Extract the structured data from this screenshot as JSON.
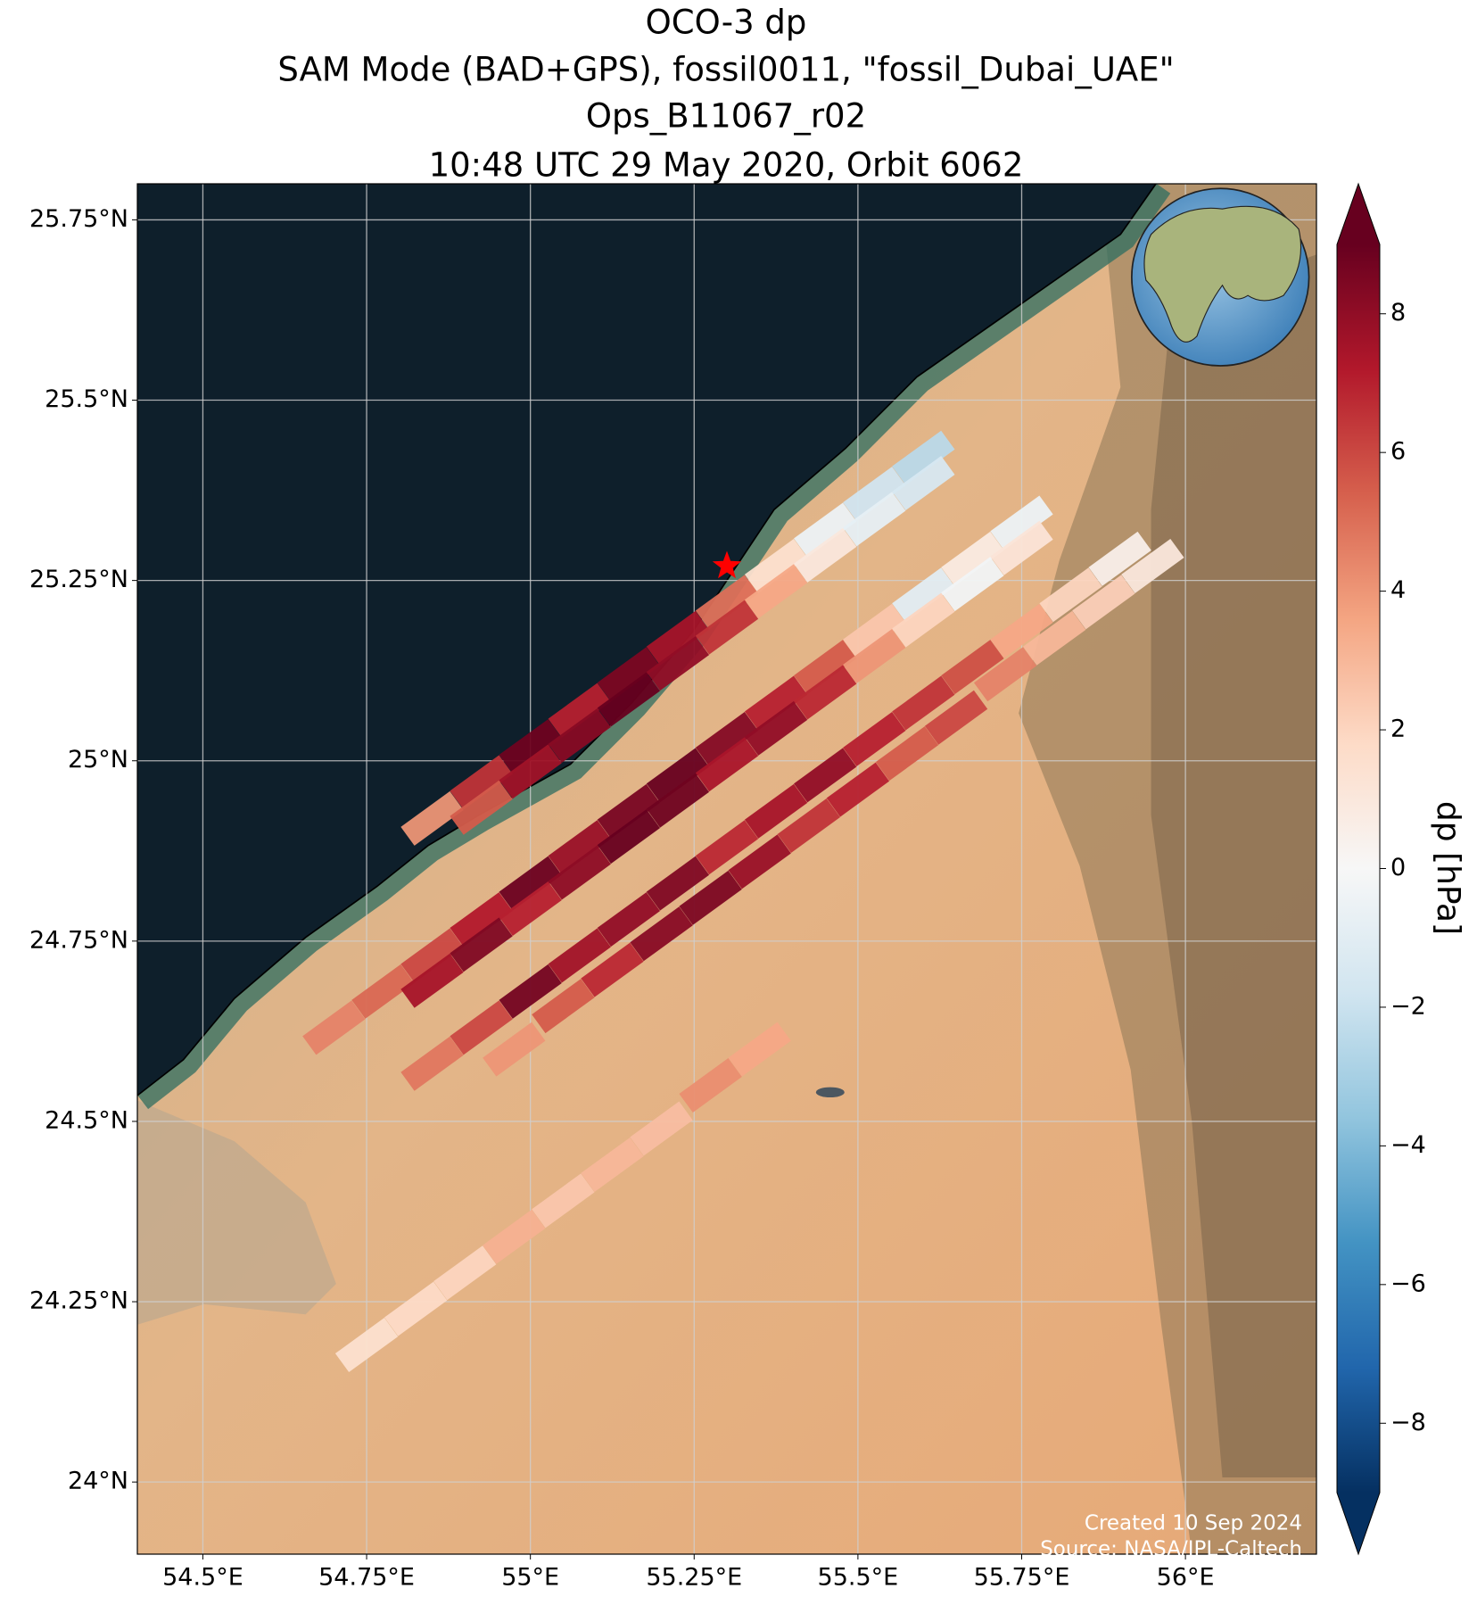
{
  "chart_data": {
    "type": "map",
    "title": [
      "OCO-3 dp",
      "SAM Mode (BAD+GPS), fossil0011, \"fossil_Dubai_UAE\"",
      "Ops_B11067_r02",
      "10:48 UTC 29 May 2020, Orbit 6062"
    ],
    "xlim": [
      54.4,
      56.2
    ],
    "ylim": [
      23.9,
      25.8
    ],
    "xticks": [
      {
        "value": 54.5,
        "label": "54.5°E"
      },
      {
        "value": 54.75,
        "label": "54.75°E"
      },
      {
        "value": 55,
        "label": "55°E"
      },
      {
        "value": 55.25,
        "label": "55.25°E"
      },
      {
        "value": 55.5,
        "label": "55.5°E"
      },
      {
        "value": 55.75,
        "label": "55.75°E"
      },
      {
        "value": 56,
        "label": "56°E"
      }
    ],
    "yticks": [
      {
        "value": 24,
        "label": "24°N"
      },
      {
        "value": 24.25,
        "label": "24.25°N"
      },
      {
        "value": 24.5,
        "label": "24.5°N"
      },
      {
        "value": 24.75,
        "label": "24.75°N"
      },
      {
        "value": 25,
        "label": "25°N"
      },
      {
        "value": 25.25,
        "label": "25.25°N"
      },
      {
        "value": 25.5,
        "label": "25.5°N"
      },
      {
        "value": 25.75,
        "label": "25.75°N"
      }
    ],
    "grid": true,
    "x": [
      55.6,
      55.525,
      55.45,
      55.375,
      55.3,
      55.225,
      55.15,
      55.075,
      55.0,
      54.925,
      54.85,
      55.6,
      55.525,
      55.45,
      55.375,
      55.3,
      55.225,
      55.15,
      55.075,
      55.0,
      54.925,
      55.75,
      55.675,
      55.6,
      55.525,
      55.45,
      55.375,
      55.3,
      55.225,
      55.15,
      55.075,
      55.0,
      54.925,
      54.85,
      54.775,
      54.7,
      55.75,
      55.675,
      55.6,
      55.525,
      55.45,
      55.375,
      55.3,
      55.225,
      55.15,
      55.075,
      55.0,
      54.925,
      54.85,
      55.9,
      55.825,
      55.75,
      55.675,
      55.6,
      55.525,
      55.45,
      55.375,
      55.3,
      55.225,
      55.15,
      55.075,
      55.0,
      54.925,
      54.85,
      55.95,
      55.875,
      55.8,
      55.725,
      55.65,
      55.575,
      55.5,
      55.425,
      55.35,
      55.275,
      55.2,
      55.125,
      55.05,
      54.975,
      55.35,
      55.275,
      55.2,
      55.125,
      55.05,
      54.975,
      54.9,
      54.825,
      54.75
    ],
    "y": [
      25.42,
      25.37,
      25.32,
      25.27,
      25.22,
      25.17,
      25.12,
      25.07,
      25.02,
      24.97,
      24.92,
      25.385,
      25.335,
      25.285,
      25.235,
      25.185,
      25.135,
      25.085,
      25.035,
      24.985,
      24.935,
      25.33,
      25.28,
      25.23,
      25.18,
      25.13,
      25.08,
      25.03,
      24.98,
      24.93,
      24.88,
      24.83,
      24.78,
      24.73,
      24.68,
      24.63,
      25.295,
      25.245,
      25.195,
      25.145,
      25.095,
      25.045,
      24.995,
      24.945,
      24.895,
      24.845,
      24.795,
      24.745,
      24.695,
      25.28,
      25.23,
      25.18,
      25.13,
      25.08,
      25.03,
      24.98,
      24.93,
      24.88,
      24.83,
      24.78,
      24.73,
      24.68,
      24.63,
      24.58,
      25.27,
      25.22,
      25.17,
      25.12,
      25.06,
      25.01,
      24.96,
      24.91,
      24.86,
      24.81,
      24.76,
      24.71,
      24.66,
      24.6,
      24.6,
      24.55,
      24.49,
      24.44,
      24.39,
      24.34,
      24.29,
      24.24,
      24.19
    ],
    "values": [
      -2.5,
      -1.8,
      -0.5,
      1.5,
      5.0,
      7.5,
      8.5,
      7.0,
      8.8,
      6.5,
      4.0,
      -1.5,
      -0.8,
      1.0,
      3.5,
      6.5,
      8.0,
      9.0,
      8.2,
      7.6,
      5.5,
      -0.5,
      0.8,
      -1.0,
      2.5,
      5.5,
      7.0,
      8.3,
      9.0,
      8.6,
      7.8,
      8.9,
      7.2,
      6.0,
      5.2,
      4.5,
      1.2,
      -0.3,
      2.0,
      4.0,
      6.8,
      8.0,
      7.4,
      8.8,
      9.0,
      8.1,
      7.0,
      8.4,
      7.5,
      0.5,
      2.0,
      3.5,
      5.8,
      6.5,
      7.0,
      8.0,
      7.5,
      6.8,
      8.4,
      8.0,
      7.6,
      8.7,
      6.0,
      4.8,
      1.0,
      2.2,
      3.0,
      4.5,
      6.0,
      5.5,
      7.0,
      6.5,
      7.8,
      8.5,
      8.2,
      6.8,
      5.5,
      4.0,
      3.5,
      4.2,
      2.8,
      3.0,
      2.5,
      3.2,
      2.0,
      1.8,
      1.5
    ],
    "site": [
      55.3,
      25.27
    ],
    "site_color": "#ff0000",
    "colormap": [
      "#053061",
      "#2166ac",
      "#4393c3",
      "#92c5de",
      "#d1e5f0",
      "#f7f7f7",
      "#fddbc7",
      "#f4a582",
      "#d6604d",
      "#b2182b",
      "#67001f"
    ],
    "clim": [
      -9,
      9
    ],
    "cticks": [
      {
        "value": -8,
        "label": "−8"
      },
      {
        "value": -6,
        "label": "−6"
      },
      {
        "value": -4,
        "label": "−4"
      },
      {
        "value": -2,
        "label": "−2"
      },
      0,
      2,
      4,
      6,
      8
    ],
    "colorbar_label": "dp [hPa]",
    "annotations": [
      "Created 10 Sep 2024",
      "Source: NASA/JPL-Caltech"
    ]
  }
}
